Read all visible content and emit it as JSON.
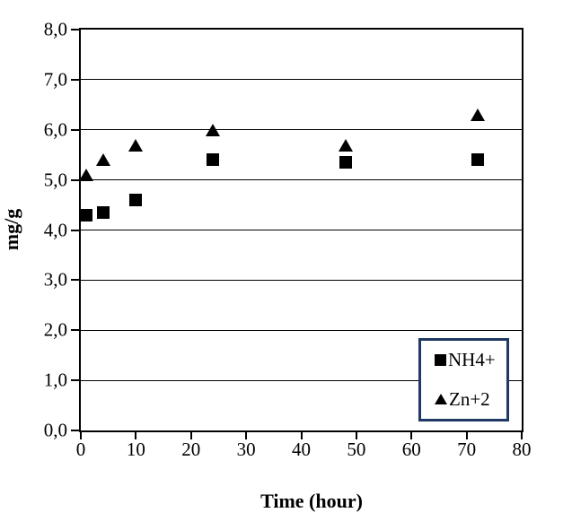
{
  "chart_data": {
    "type": "scatter",
    "title": "",
    "xlabel": "Time (hour)",
    "ylabel": "mg/g",
    "xlim": [
      0,
      80
    ],
    "ylim": [
      0,
      8
    ],
    "grid": "horizontal",
    "legend_position": "inside-bottom-right",
    "x": [
      1,
      4,
      10,
      24,
      48,
      72
    ],
    "series": [
      {
        "name": "NH4+",
        "marker": "square",
        "color": "#000000",
        "values": [
          4.3,
          4.35,
          4.6,
          5.4,
          5.35,
          5.4
        ]
      },
      {
        "name": "Zn+2",
        "marker": "triangle",
        "color": "#000000",
        "values": [
          5.1,
          5.4,
          5.7,
          6.0,
          5.7,
          6.3
        ]
      }
    ],
    "y_ticks": [
      {
        "value": 0,
        "label": "0,0"
      },
      {
        "value": 1,
        "label": "1,0"
      },
      {
        "value": 2,
        "label": "2,0"
      },
      {
        "value": 3,
        "label": "3,0"
      },
      {
        "value": 4,
        "label": "4,0"
      },
      {
        "value": 5,
        "label": "5,0"
      },
      {
        "value": 6,
        "label": "6,0"
      },
      {
        "value": 7,
        "label": "7,0"
      },
      {
        "value": 8,
        "label": "8,0"
      }
    ],
    "x_ticks": [
      {
        "value": 0,
        "label": "0"
      },
      {
        "value": 10,
        "label": "10"
      },
      {
        "value": 20,
        "label": "20"
      },
      {
        "value": 30,
        "label": "30"
      },
      {
        "value": 40,
        "label": "40"
      },
      {
        "value": 50,
        "label": "50"
      },
      {
        "value": 60,
        "label": "60"
      },
      {
        "value": 70,
        "label": "70"
      },
      {
        "value": 80,
        "label": "80"
      }
    ],
    "colors": {
      "marker": "#000000",
      "gridline": "#000000",
      "axis": "#000000",
      "legend_border": "#1F3864",
      "background": "#FFFFFF"
    }
  }
}
